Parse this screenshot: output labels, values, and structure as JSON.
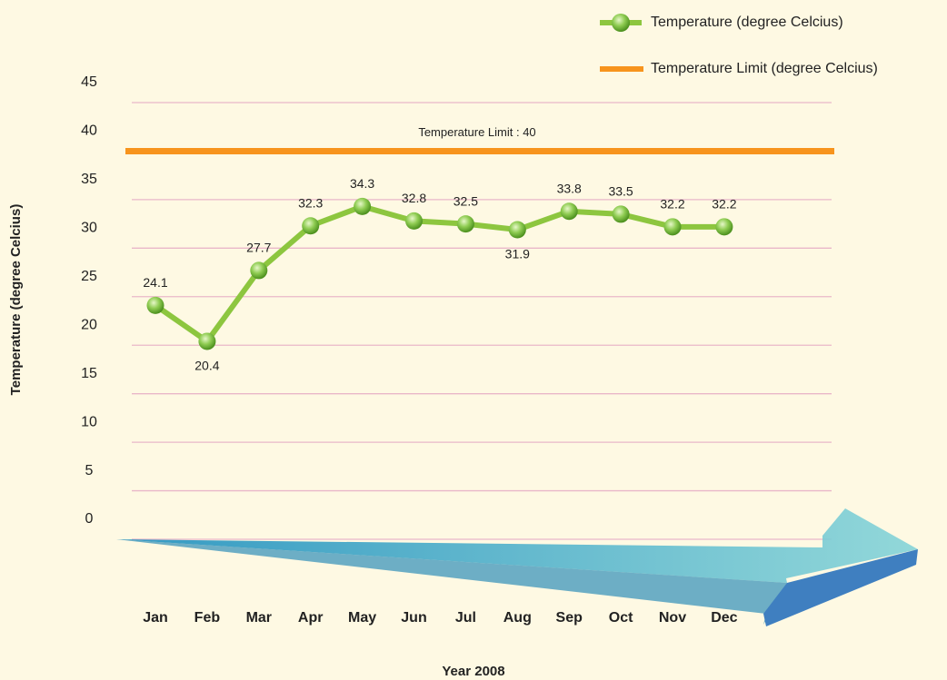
{
  "chart_data": {
    "type": "line",
    "x_label": "Year 2008",
    "y_label": "Temperature (degree Celcius)",
    "categories": [
      "Jan",
      "Feb",
      "Mar",
      "Apr",
      "May",
      "Jun",
      "Jul",
      "Aug",
      "Sep",
      "Oct",
      "Nov",
      "Dec"
    ],
    "series": [
      {
        "name": "Temperature (degree Celcius)",
        "color": "#8dc63f",
        "values": [
          24.1,
          20.4,
          27.7,
          32.3,
          34.3,
          32.8,
          32.5,
          31.9,
          33.8,
          33.5,
          32.2,
          32.2
        ]
      }
    ],
    "limit": {
      "name": "Temperature Limit (degree Celcius)",
      "color": "#f7941d",
      "value": 40,
      "label": "Temperature Limit : 40"
    },
    "ylim": [
      0,
      45
    ],
    "yticks": [
      0,
      5,
      10,
      15,
      20,
      25,
      30,
      35,
      40,
      45
    ],
    "grid": true,
    "legend": "top-right"
  }
}
